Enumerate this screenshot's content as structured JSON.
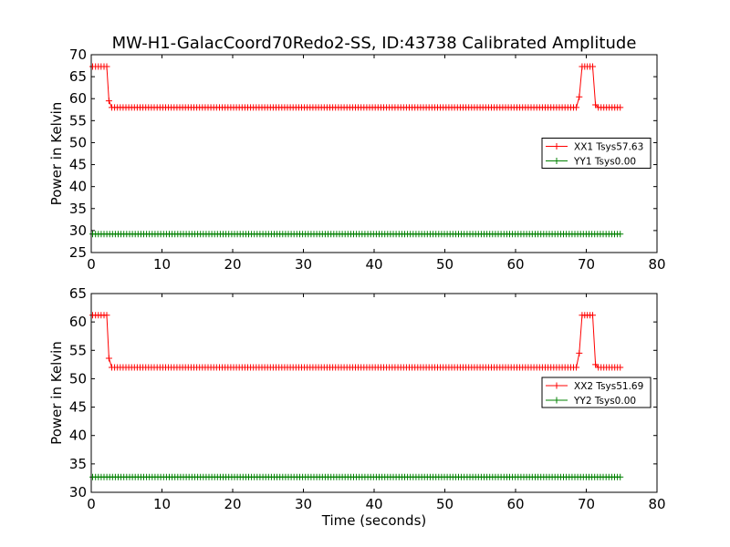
{
  "chart_data": {
    "title": "MW-H1-GalacCoord70Redo2-SS, ID:43738 Calibrated Amplitude",
    "xlabel": "Time (seconds)",
    "panels": [
      {
        "type": "line",
        "ylabel": "Power in Kelvin",
        "xlim": [
          0,
          80
        ],
        "ylim": [
          25,
          70
        ],
        "xticks": [
          "0",
          "10",
          "20",
          "30",
          "40",
          "50",
          "60",
          "70",
          "80"
        ],
        "yticks": [
          "25",
          "30",
          "35",
          "40",
          "45",
          "50",
          "55",
          "60",
          "65",
          "70"
        ],
        "legend_position": "center-right",
        "series": [
          {
            "name": "XX1 Tsys57.63",
            "color": "#ff0000",
            "segments": [
              {
                "x_start": 0.2,
                "x_end": 2.2,
                "y": 67.3
              },
              {
                "x_start": 2.5,
                "x_end": 2.5,
                "y": 59.5
              },
              {
                "x_start": 2.9,
                "x_end": 68.6,
                "y": 58.0
              },
              {
                "x_start": 69.0,
                "x_end": 69.0,
                "y": 60.4
              },
              {
                "x_start": 69.4,
                "x_end": 70.9,
                "y": 67.3
              },
              {
                "x_start": 71.3,
                "x_end": 71.3,
                "y": 58.6
              },
              {
                "x_start": 71.7,
                "x_end": 74.8,
                "y": 58.0
              }
            ]
          },
          {
            "name": "YY1 Tsys0.00",
            "color": "#008000",
            "segments": [
              {
                "x_start": 0.2,
                "x_end": 74.8,
                "y": 29.2
              }
            ]
          }
        ]
      },
      {
        "type": "line",
        "ylabel": "Power in Kelvin",
        "xlim": [
          0,
          80
        ],
        "ylim": [
          30,
          65
        ],
        "xticks": [
          "0",
          "10",
          "20",
          "30",
          "40",
          "50",
          "60",
          "70",
          "80"
        ],
        "yticks": [
          "30",
          "35",
          "40",
          "45",
          "50",
          "55",
          "60",
          "65"
        ],
        "legend_position": "center-right",
        "series": [
          {
            "name": "XX2 Tsys51.69",
            "color": "#ff0000",
            "segments": [
              {
                "x_start": 0.2,
                "x_end": 2.2,
                "y": 61.2
              },
              {
                "x_start": 2.5,
                "x_end": 2.5,
                "y": 53.6
              },
              {
                "x_start": 2.9,
                "x_end": 68.6,
                "y": 52.0
              },
              {
                "x_start": 69.0,
                "x_end": 69.0,
                "y": 54.5
              },
              {
                "x_start": 69.4,
                "x_end": 70.9,
                "y": 61.2
              },
              {
                "x_start": 71.3,
                "x_end": 71.3,
                "y": 52.5
              },
              {
                "x_start": 71.7,
                "x_end": 74.8,
                "y": 52.0
              }
            ]
          },
          {
            "name": "YY2 Tsys0.00",
            "color": "#008000",
            "segments": [
              {
                "x_start": 0.2,
                "x_end": 74.8,
                "y": 32.7
              }
            ]
          }
        ]
      }
    ]
  }
}
